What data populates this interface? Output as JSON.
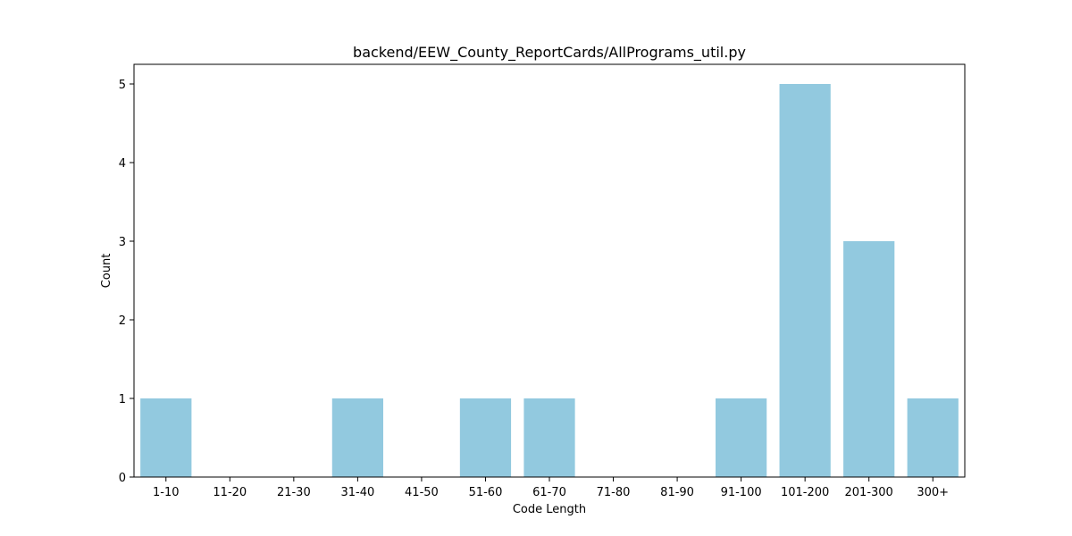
{
  "chart_data": {
    "type": "bar",
    "title": "backend/EEW_County_ReportCards/AllPrograms_util.py",
    "xlabel": "Code Length",
    "ylabel": "Count",
    "categories": [
      "1-10",
      "11-20",
      "21-30",
      "31-40",
      "41-50",
      "51-60",
      "61-70",
      "71-80",
      "81-90",
      "91-100",
      "101-200",
      "201-300",
      "300+"
    ],
    "values": [
      1,
      0,
      0,
      1,
      0,
      1,
      1,
      0,
      0,
      1,
      5,
      3,
      1
    ],
    "ylim": [
      0,
      5.25
    ],
    "yticks": [
      0,
      1,
      2,
      3,
      4,
      5
    ],
    "grid": false,
    "legend": "none",
    "bar_color": "#92c9df"
  }
}
